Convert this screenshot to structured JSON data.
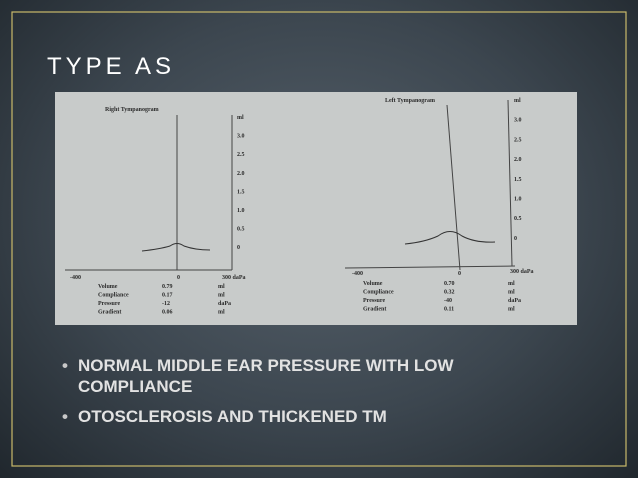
{
  "slide": {
    "title": "TYPE AS",
    "tympanograms": [
      {
        "title": "Right Tympanogram",
        "y_labels": [
          "ml",
          "3.0",
          "2.5",
          "2.0",
          "1.5",
          "1.0",
          "0.5",
          "0"
        ],
        "x_labels": [
          "-400",
          "0",
          "300 daPa"
        ],
        "table": [
          [
            "Volume",
            "0.79",
            "ml"
          ],
          [
            "Compliance",
            "0.17",
            "ml"
          ],
          [
            "Pressure",
            "-12",
            "daPa"
          ],
          [
            "Gradient",
            "0.06",
            "ml"
          ]
        ]
      },
      {
        "title": "Left Tympanogram",
        "y_labels": [
          "ml",
          "3.0",
          "2.5",
          "2.0",
          "1.5",
          "1.0",
          "0.5",
          "0"
        ],
        "x_labels": [
          "-400",
          "0",
          "300 daPa"
        ],
        "table": [
          [
            "Volume",
            "0.70",
            "ml"
          ],
          [
            "Compliance",
            "0.32",
            "ml"
          ],
          [
            "Pressure",
            "-40",
            "daPa"
          ],
          [
            "Gradient",
            "0.11",
            "ml"
          ]
        ]
      }
    ],
    "bullets": [
      "NORMAL MIDDLE EAR PRESSURE WITH LOW COMPLIANCE",
      "OTOSCLEROSIS AND THICKENED TM"
    ]
  }
}
